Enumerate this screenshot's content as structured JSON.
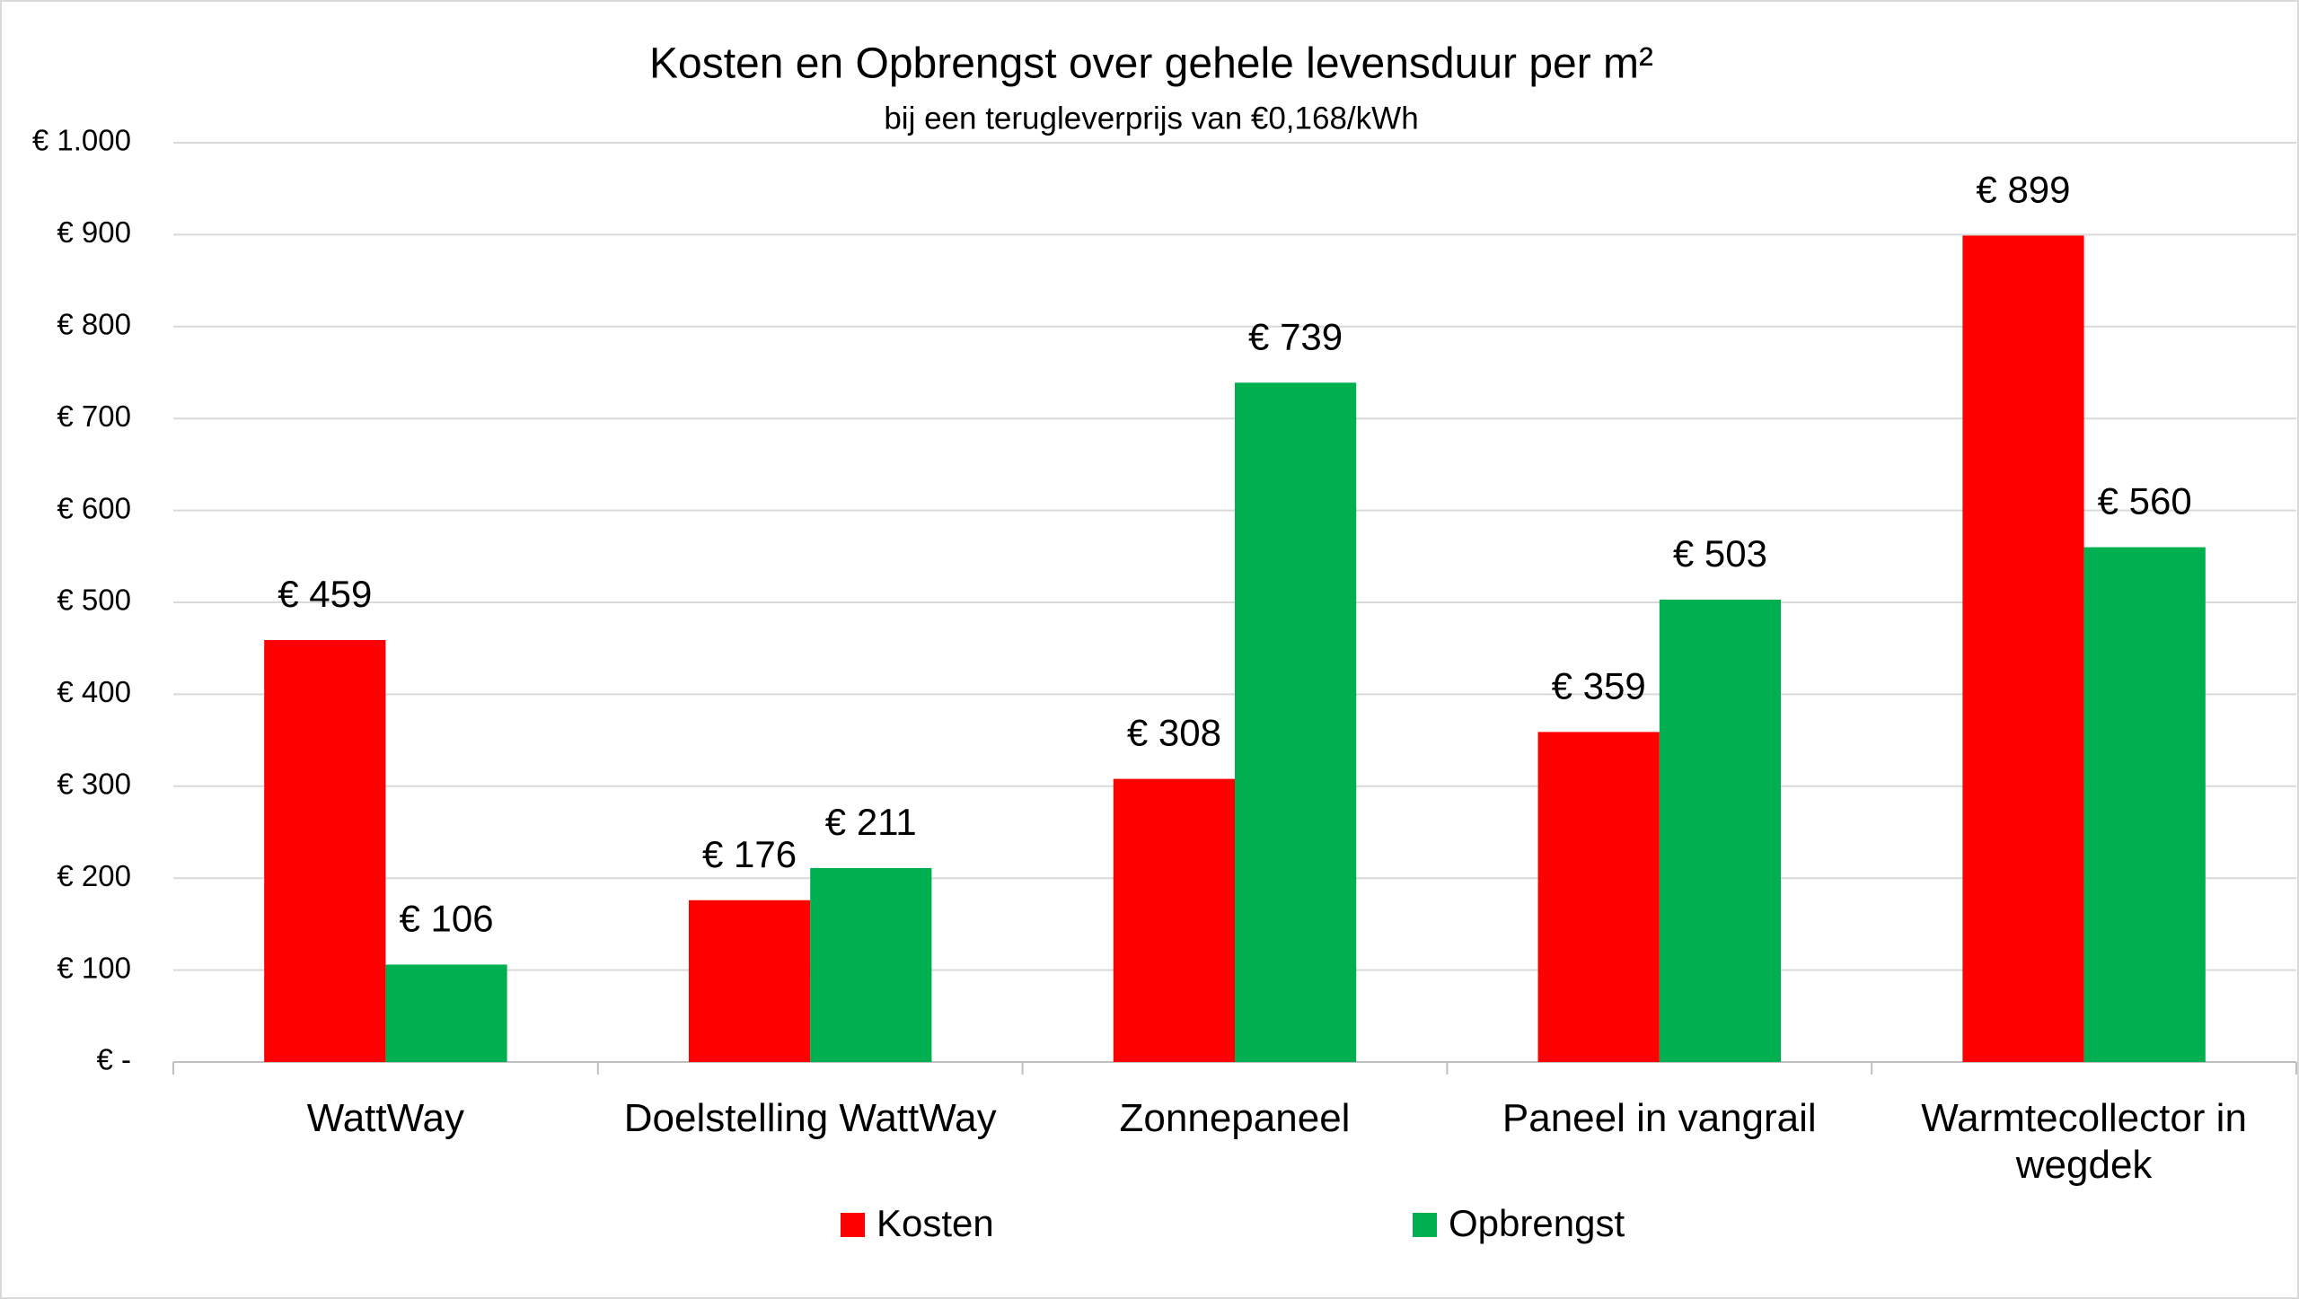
{
  "chart_data": {
    "type": "bar",
    "title": "Kosten en Opbrengst over gehele levensduur per m²",
    "subtitle": "bij een terugleverprijs van €0,168/kWh",
    "categories": [
      "WattWay",
      "Doelstelling WattWay",
      "Zonnepaneel",
      "Paneel in vangrail",
      "Warmtecollector in wegdek"
    ],
    "series": [
      {
        "name": "Kosten",
        "color": "#ff0000",
        "values": [
          459,
          176,
          308,
          359,
          899
        ],
        "value_labels": [
          "€ 459",
          "€ 176",
          "€ 308",
          "€ 359",
          "€ 899"
        ]
      },
      {
        "name": "Opbrengst",
        "color": "#00b050",
        "values": [
          106,
          211,
          739,
          503,
          560
        ],
        "value_labels": [
          "€ 106",
          "€ 211",
          "€ 739",
          "€ 503",
          "€ 560"
        ]
      }
    ],
    "ylim": [
      0,
      1000
    ],
    "yticks": [
      {
        "value": 0,
        "label": "€ -"
      },
      {
        "value": 100,
        "label": "€ 100"
      },
      {
        "value": 200,
        "label": "€ 200"
      },
      {
        "value": 300,
        "label": "€ 300"
      },
      {
        "value": 400,
        "label": "€ 400"
      },
      {
        "value": 500,
        "label": "€ 500"
      },
      {
        "value": 600,
        "label": "€ 600"
      },
      {
        "value": 700,
        "label": "€ 700"
      },
      {
        "value": 800,
        "label": "€ 800"
      },
      {
        "value": 900,
        "label": "€ 900"
      },
      {
        "value": 1000,
        "label": "€ 1.000"
      }
    ],
    "grid": true,
    "legend": "bottom"
  }
}
